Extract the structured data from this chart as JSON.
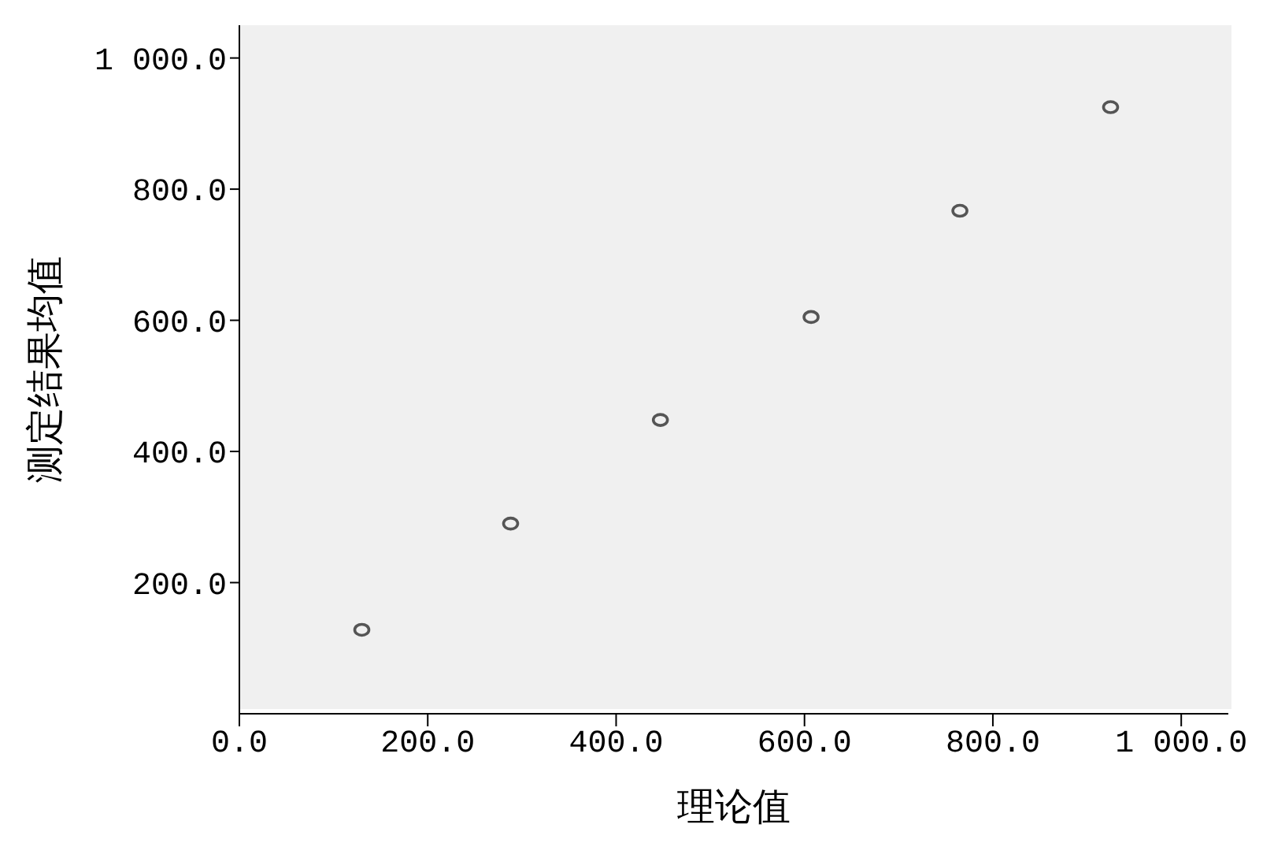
{
  "chart_data": {
    "type": "scatter",
    "xlabel": "理论值",
    "ylabel": "测定结果均值",
    "x": [
      130,
      288,
      447,
      607,
      765,
      925
    ],
    "values": [
      128,
      290,
      448,
      605,
      767,
      925
    ],
    "color": "#555555",
    "marker": "circle",
    "grid": false,
    "legend": false,
    "xlim": [
      0,
      1050
    ],
    "ylim": [
      0,
      1050
    ],
    "xticks": [
      {
        "value": 0,
        "label": "0.0"
      },
      {
        "value": 200,
        "label": "200.0"
      },
      {
        "value": 400,
        "label": "400.0"
      },
      {
        "value": 600,
        "label": "600.0"
      },
      {
        "value": 800,
        "label": "800.0"
      },
      {
        "value": 1000,
        "label": "1 000.0"
      }
    ],
    "yticks": [
      {
        "value": 200,
        "label": "200.0"
      },
      {
        "value": 400,
        "label": "400.0"
      },
      {
        "value": 600,
        "label": "600.0"
      },
      {
        "value": 800,
        "label": "800.0"
      },
      {
        "value": 1000,
        "label": "1 000.0"
      }
    ]
  }
}
